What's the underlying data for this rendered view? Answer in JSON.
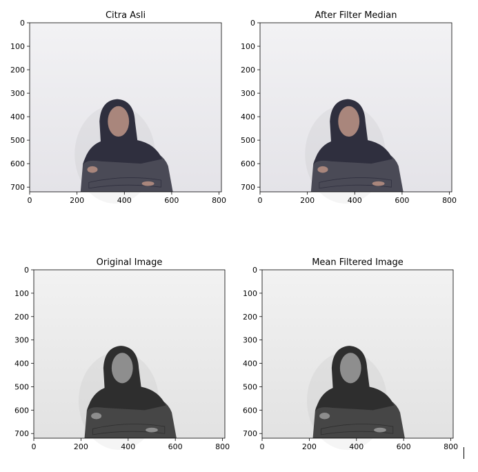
{
  "chart_data": [
    {
      "type": "image",
      "title": "Citra Asli",
      "tone": "color",
      "x_ticks": [
        0,
        200,
        400,
        600,
        800
      ],
      "y_ticks": [
        0,
        100,
        200,
        300,
        400,
        500,
        600,
        700
      ],
      "xlim": [
        0,
        810
      ],
      "ylim": [
        720,
        0
      ]
    },
    {
      "type": "image",
      "title": "After Filter Median",
      "tone": "color",
      "x_ticks": [
        0,
        200,
        400,
        600,
        800
      ],
      "y_ticks": [
        0,
        100,
        200,
        300,
        400,
        500,
        600,
        700
      ],
      "xlim": [
        0,
        810
      ],
      "ylim": [
        720,
        0
      ]
    },
    {
      "type": "image",
      "title": "Original Image",
      "tone": "gray",
      "x_ticks": [
        0,
        200,
        400,
        600,
        800
      ],
      "y_ticks": [
        0,
        100,
        200,
        300,
        400,
        500,
        600,
        700
      ],
      "xlim": [
        0,
        810
      ],
      "ylim": [
        720,
        0
      ]
    },
    {
      "type": "image",
      "title": "Mean Filtered Image",
      "tone": "gray",
      "x_ticks": [
        0,
        200,
        400,
        600,
        800
      ],
      "y_ticks": [
        0,
        100,
        200,
        300,
        400,
        500,
        600,
        700
      ],
      "xlim": [
        0,
        810
      ],
      "ylim": [
        720,
        0
      ]
    }
  ],
  "colors": {
    "axis": "#000000",
    "color_bg_top": "#f2f2f4",
    "color_bg_bottom": "#e4e3e8",
    "color_hijab": "#2f2f3e",
    "color_shirt": "#4a4a56",
    "color_skin": "#a9867c",
    "gray_bg_top": "#f2f2f2",
    "gray_bg_bottom": "#e2e2e2",
    "gray_hijab": "#2e2e2e",
    "gray_shirt": "#464646",
    "gray_skin": "#8e8e8e"
  }
}
